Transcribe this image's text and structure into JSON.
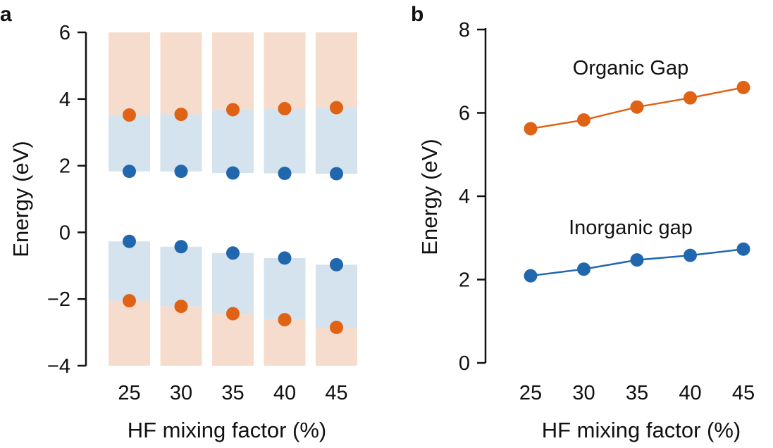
{
  "chart_data": [
    {
      "panel": "a",
      "type": "scatter",
      "xlabel": "HF mixing factor (%)",
      "ylabel": "Energy (eV)",
      "ylim": [
        -4,
        6
      ],
      "yticks": [
        6,
        4,
        2,
        0,
        -2,
        -4
      ],
      "ytick_labels": [
        "6",
        "4",
        "2",
        "0",
        "−2",
        "−4"
      ],
      "categories": [
        "25",
        "30",
        "35",
        "40",
        "45"
      ],
      "bands": {
        "top": 6,
        "bottom": -4,
        "inorganic_cbm": [
          1.83,
          1.83,
          1.78,
          1.77,
          1.76
        ],
        "organic_lumo": [
          3.52,
          3.54,
          3.68,
          3.71,
          3.74
        ],
        "inorganic_vbm": [
          -0.27,
          -0.43,
          -0.62,
          -0.77,
          -0.97
        ],
        "organic_homo": [
          -2.05,
          -2.22,
          -2.44,
          -2.62,
          -2.85
        ]
      },
      "series": [
        {
          "color": "#e06214",
          "values": [
            3.52,
            3.54,
            3.68,
            3.71,
            3.74
          ]
        },
        {
          "color": "#2167ae",
          "values": [
            1.83,
            1.83,
            1.78,
            1.77,
            1.76
          ]
        },
        {
          "color": "#2167ae",
          "values": [
            -0.27,
            -0.43,
            -0.62,
            -0.77,
            -0.97
          ]
        },
        {
          "color": "#e06214",
          "values": [
            -2.05,
            -2.22,
            -2.44,
            -2.62,
            -2.85
          ]
        }
      ],
      "colors": {
        "organic_fill": "#f6dccd",
        "inorganic_fill": "#d4e3ee"
      }
    },
    {
      "panel": "b",
      "type": "line",
      "xlabel": "HF mixing factor (%)",
      "ylabel": "Energy (eV)",
      "ylim": [
        0,
        8
      ],
      "yticks": [
        8,
        6,
        4,
        2,
        0
      ],
      "categories": [
        "25",
        "30",
        "35",
        "40",
        "45"
      ],
      "series": [
        {
          "name": "Organic Gap",
          "color": "#e06214",
          "values": [
            5.62,
            5.83,
            6.14,
            6.36,
            6.61
          ]
        },
        {
          "name": "Inorganic gap",
          "color": "#2167ae",
          "values": [
            2.09,
            2.25,
            2.47,
            2.58,
            2.73
          ]
        }
      ]
    }
  ]
}
